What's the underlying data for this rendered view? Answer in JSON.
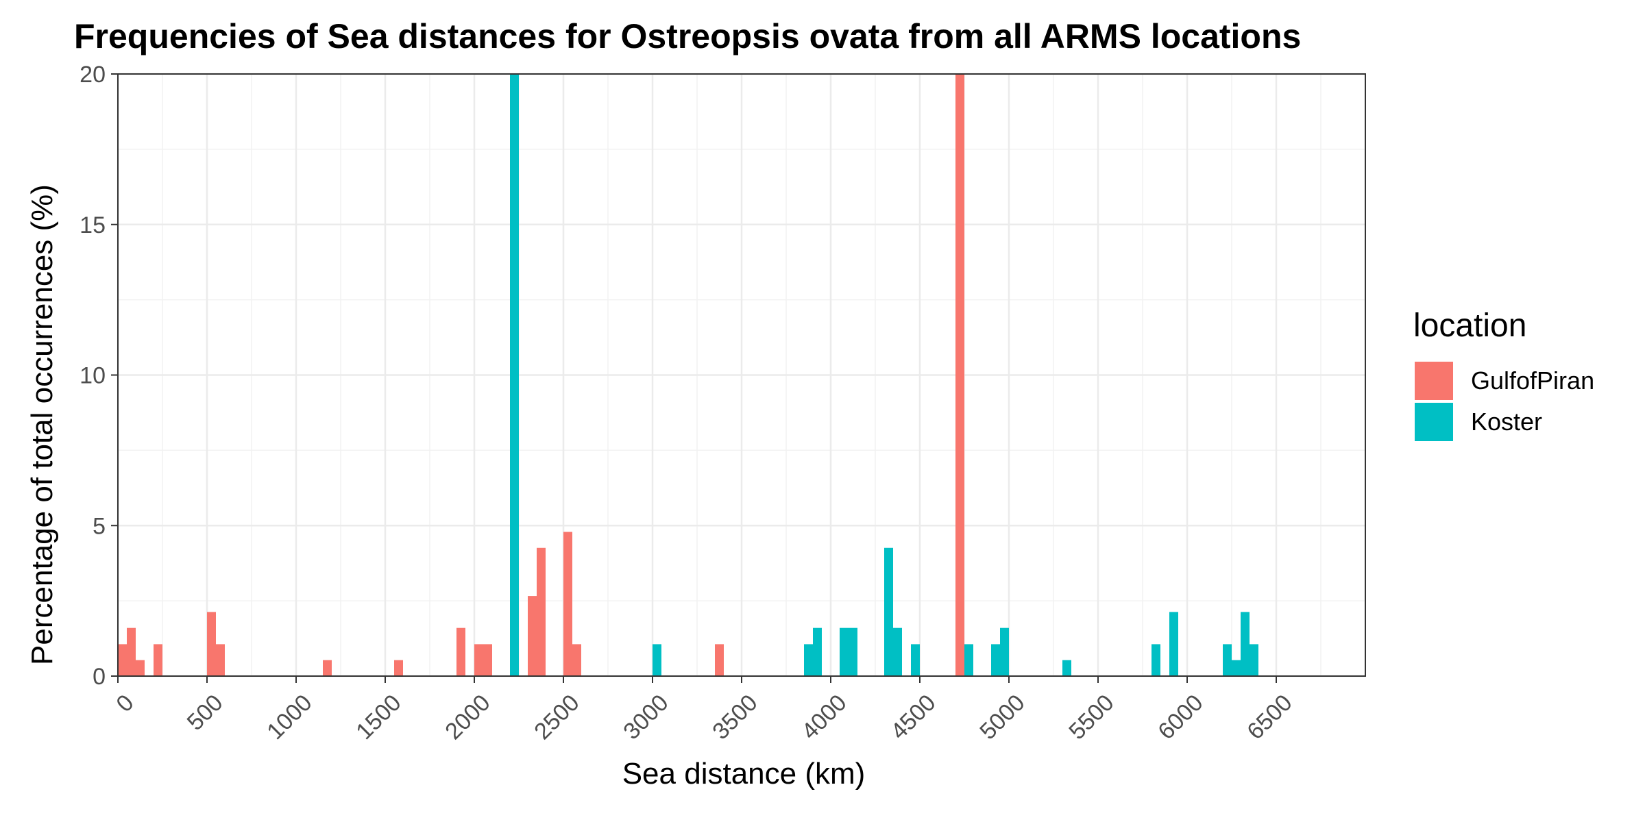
{
  "chart_data": {
    "type": "bar",
    "title": "Frequencies of Sea distances for Ostreopsis ovata from all ARMS locations",
    "xlabel": "Sea distance (km)",
    "ylabel": "Percentage of total occurrences (%)",
    "xlim": [
      0,
      7000
    ],
    "ylim": [
      0,
      20
    ],
    "bin_width": 50,
    "x_ticks": [
      0,
      500,
      1000,
      1500,
      2000,
      2500,
      3000,
      3500,
      4000,
      4500,
      5000,
      5500,
      6000,
      6500
    ],
    "y_ticks": [
      0,
      5,
      10,
      15,
      20
    ],
    "grid": true,
    "legend": {
      "title": "location",
      "position": "right"
    },
    "series": [
      {
        "name": "GulfofPiran",
        "color": "#F8766D",
        "bars": [
          {
            "x": 0,
            "y": 1.06
          },
          {
            "x": 50,
            "y": 1.6
          },
          {
            "x": 100,
            "y": 0.53
          },
          {
            "x": 200,
            "y": 1.06
          },
          {
            "x": 500,
            "y": 2.13
          },
          {
            "x": 550,
            "y": 1.06
          },
          {
            "x": 1150,
            "y": 0.53
          },
          {
            "x": 1550,
            "y": 0.53
          },
          {
            "x": 1900,
            "y": 1.6
          },
          {
            "x": 2000,
            "y": 1.06
          },
          {
            "x": 2050,
            "y": 1.06
          },
          {
            "x": 2300,
            "y": 2.66
          },
          {
            "x": 2350,
            "y": 4.26
          },
          {
            "x": 2500,
            "y": 4.79
          },
          {
            "x": 2550,
            "y": 1.06
          },
          {
            "x": 3350,
            "y": 1.06
          },
          {
            "x": 4700,
            "y": 20
          }
        ]
      },
      {
        "name": "Koster",
        "color": "#00BFC4",
        "bars": [
          {
            "x": 2200,
            "y": 20
          },
          {
            "x": 3000,
            "y": 1.06
          },
          {
            "x": 3850,
            "y": 1.06
          },
          {
            "x": 3900,
            "y": 1.6
          },
          {
            "x": 4050,
            "y": 1.6
          },
          {
            "x": 4100,
            "y": 1.6
          },
          {
            "x": 4300,
            "y": 4.26
          },
          {
            "x": 4350,
            "y": 1.6
          },
          {
            "x": 4450,
            "y": 1.06
          },
          {
            "x": 4750,
            "y": 1.06
          },
          {
            "x": 4900,
            "y": 1.06
          },
          {
            "x": 4950,
            "y": 1.6
          },
          {
            "x": 5300,
            "y": 0.53
          },
          {
            "x": 5800,
            "y": 1.06
          },
          {
            "x": 5900,
            "y": 2.13
          },
          {
            "x": 6200,
            "y": 1.06
          },
          {
            "x": 6250,
            "y": 0.53
          },
          {
            "x": 6300,
            "y": 2.13
          },
          {
            "x": 6350,
            "y": 1.06
          }
        ]
      }
    ]
  }
}
